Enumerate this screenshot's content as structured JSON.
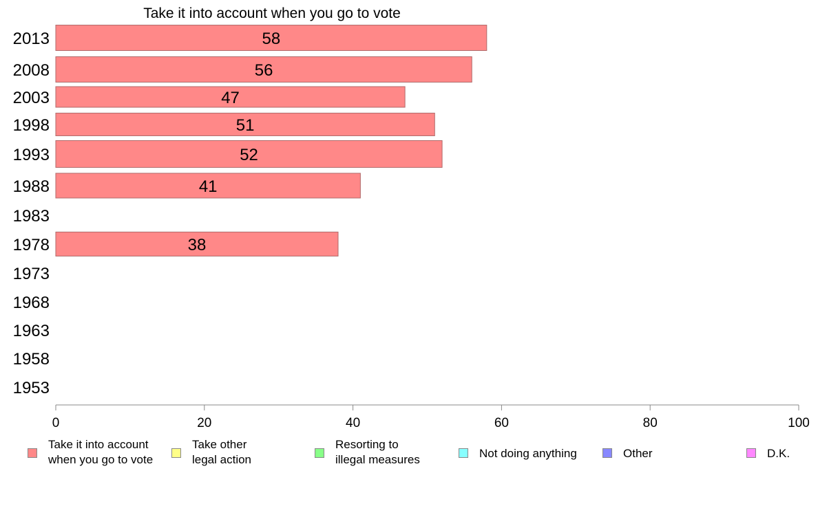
{
  "chart_data": {
    "type": "bar",
    "orientation": "horizontal",
    "title": "Take it into account when you go to vote",
    "categories": [
      "2013",
      "2008",
      "2003",
      "1998",
      "1993",
      "1988",
      "1983",
      "1978",
      "1973",
      "1968",
      "1963",
      "1958",
      "1953"
    ],
    "series": [
      {
        "name": "Take it into account when you go to vote",
        "color": "#ff8888",
        "values": [
          58,
          56,
          47,
          51,
          52,
          41,
          null,
          38,
          null,
          null,
          null,
          null,
          null
        ]
      }
    ],
    "xlim": [
      0,
      100
    ],
    "xticks": [
      "0",
      "20",
      "40",
      "60",
      "80",
      "100"
    ],
    "legend": [
      {
        "label": "Take it into account\nwhen you go to vote",
        "color": "#ff8888"
      },
      {
        "label": "Take other\nlegal action",
        "color": "#ffff88"
      },
      {
        "label": "Resorting to\nillegal measures",
        "color": "#88ff88"
      },
      {
        "label": "Not doing anything",
        "color": "#88ffff"
      },
      {
        "label": "Other",
        "color": "#8888ff"
      },
      {
        "label": "D.K.",
        "color": "#ff88ff"
      }
    ],
    "legend_position": "bottom",
    "grid": false
  }
}
